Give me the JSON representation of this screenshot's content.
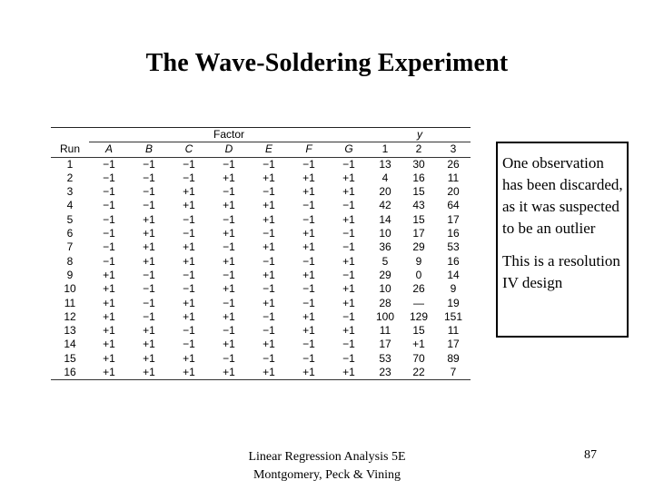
{
  "title": "The Wave-Soldering Experiment",
  "table": {
    "group_factor": "Factor",
    "group_y": "y",
    "run_header": "Run",
    "factor_headers": [
      "A",
      "B",
      "C",
      "D",
      "E",
      "F",
      "G"
    ],
    "y_headers": [
      "1",
      "2",
      "3"
    ],
    "rows": [
      {
        "run": "1",
        "factors": [
          "−1",
          "−1",
          "−1",
          "−1",
          "−1",
          "−1",
          "−1"
        ],
        "y": [
          "13",
          "30",
          "26"
        ]
      },
      {
        "run": "2",
        "factors": [
          "−1",
          "−1",
          "−1",
          "+1",
          "+1",
          "+1",
          "+1"
        ],
        "y": [
          "4",
          "16",
          "11"
        ]
      },
      {
        "run": "3",
        "factors": [
          "−1",
          "−1",
          "+1",
          "−1",
          "−1",
          "+1",
          "+1"
        ],
        "y": [
          "20",
          "15",
          "20"
        ]
      },
      {
        "run": "4",
        "factors": [
          "−1",
          "−1",
          "+1",
          "+1",
          "+1",
          "−1",
          "−1"
        ],
        "y": [
          "42",
          "43",
          "64"
        ]
      },
      {
        "run": "5",
        "factors": [
          "−1",
          "+1",
          "−1",
          "−1",
          "+1",
          "−1",
          "+1"
        ],
        "y": [
          "14",
          "15",
          "17"
        ]
      },
      {
        "run": "6",
        "factors": [
          "−1",
          "+1",
          "−1",
          "+1",
          "−1",
          "+1",
          "−1"
        ],
        "y": [
          "10",
          "17",
          "16"
        ]
      },
      {
        "run": "7",
        "factors": [
          "−1",
          "+1",
          "+1",
          "−1",
          "+1",
          "+1",
          "−1"
        ],
        "y": [
          "36",
          "29",
          "53"
        ]
      },
      {
        "run": "8",
        "factors": [
          "−1",
          "+1",
          "+1",
          "+1",
          "−1",
          "−1",
          "+1"
        ],
        "y": [
          "5",
          "9",
          "16"
        ]
      },
      {
        "run": "9",
        "factors": [
          "+1",
          "−1",
          "−1",
          "−1",
          "+1",
          "+1",
          "−1"
        ],
        "y": [
          "29",
          "0",
          "14"
        ]
      },
      {
        "run": "10",
        "factors": [
          "+1",
          "−1",
          "−1",
          "+1",
          "−1",
          "−1",
          "+1"
        ],
        "y": [
          "10",
          "26",
          "9"
        ]
      },
      {
        "run": "11",
        "factors": [
          "+1",
          "−1",
          "+1",
          "−1",
          "+1",
          "−1",
          "+1"
        ],
        "y": [
          "28",
          "—",
          "19"
        ]
      },
      {
        "run": "12",
        "factors": [
          "+1",
          "−1",
          "+1",
          "+1",
          "−1",
          "+1",
          "−1"
        ],
        "y": [
          "100",
          "129",
          "151"
        ]
      },
      {
        "run": "13",
        "factors": [
          "+1",
          "+1",
          "−1",
          "−1",
          "−1",
          "+1",
          "+1"
        ],
        "y": [
          "11",
          "15",
          "11"
        ]
      },
      {
        "run": "14",
        "factors": [
          "+1",
          "+1",
          "−1",
          "+1",
          "+1",
          "−1",
          "−1"
        ],
        "y": [
          "17",
          "+1",
          "17"
        ]
      },
      {
        "run": "15",
        "factors": [
          "+1",
          "+1",
          "+1",
          "−1",
          "−1",
          "−1",
          "−1"
        ],
        "y": [
          "53",
          "70",
          "89"
        ]
      },
      {
        "run": "16",
        "factors": [
          "+1",
          "+1",
          "+1",
          "+1",
          "+1",
          "+1",
          "+1"
        ],
        "y": [
          "23",
          "22",
          "7"
        ]
      }
    ]
  },
  "note": {
    "p1": "One observation has been discarded, as it was suspected to be an outlier",
    "p2": "This is a resolution IV design"
  },
  "footer": {
    "line1": "Linear Regression Analysis 5E",
    "line2": "Montgomery, Peck & Vining"
  },
  "page_number": "87"
}
